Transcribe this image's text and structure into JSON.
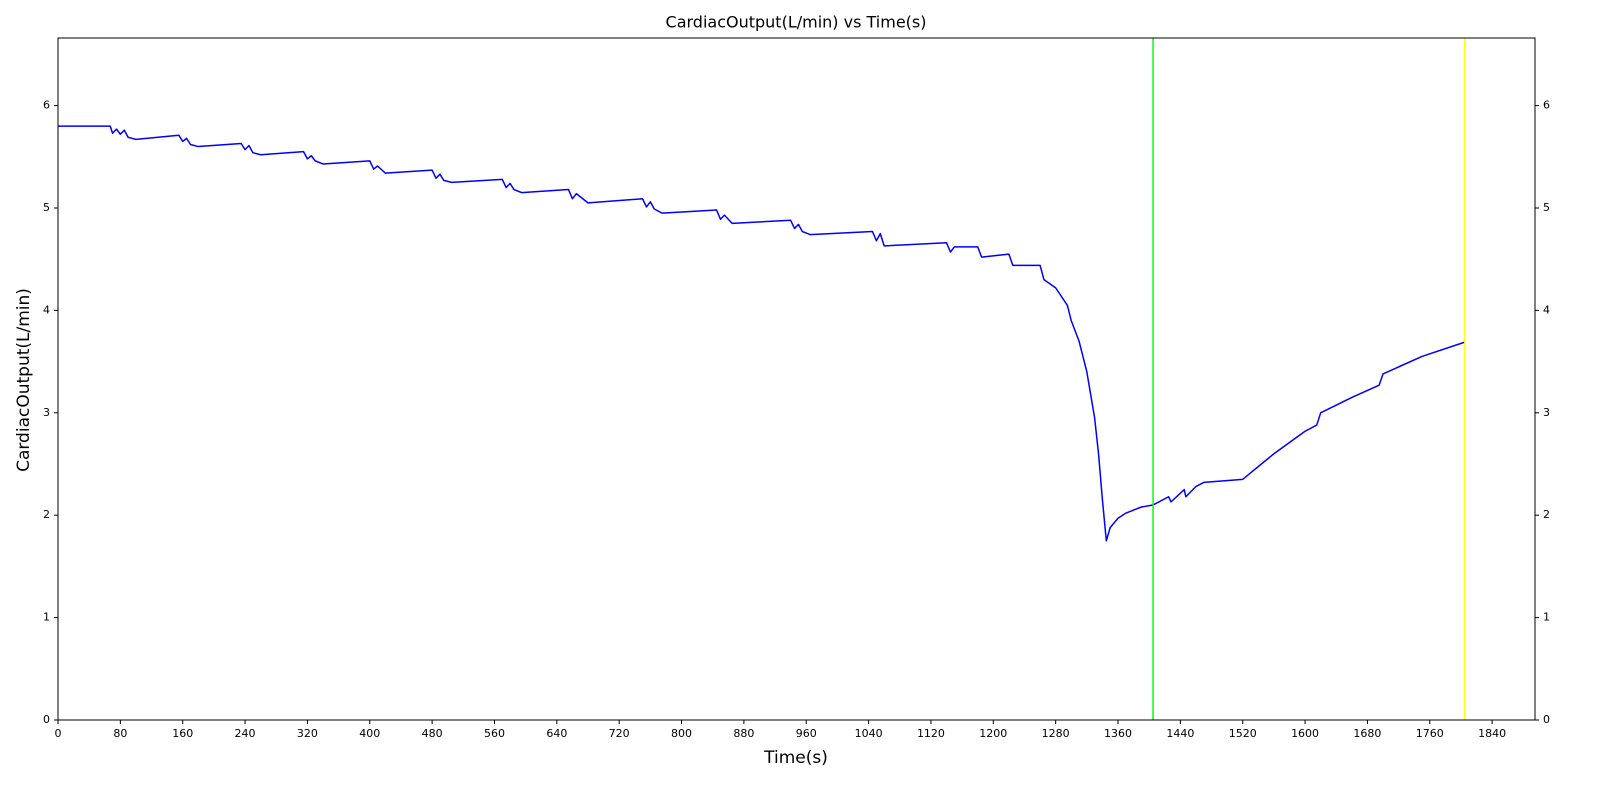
{
  "chart_data": {
    "type": "line",
    "title": "CardiacOutput(L/min) vs Time(s)",
    "xlabel": "Time(s)",
    "ylabel": "CardiacOutput(L/min)",
    "xlim": [
      0,
      1895
    ],
    "ylim": [
      0,
      6.66
    ],
    "xticks": [
      0,
      80,
      160,
      240,
      320,
      400,
      480,
      560,
      640,
      720,
      800,
      880,
      960,
      1040,
      1120,
      1200,
      1280,
      1360,
      1440,
      1520,
      1600,
      1680,
      1760,
      1840
    ],
    "yticks": [
      0,
      1,
      2,
      3,
      4,
      5,
      6
    ],
    "right_ticks": true,
    "grid": false,
    "x": [
      0,
      67,
      70,
      75,
      80,
      85,
      90,
      100,
      155,
      160,
      165,
      170,
      180,
      235,
      240,
      245,
      250,
      260,
      315,
      320,
      325,
      330,
      340,
      400,
      405,
      410,
      420,
      480,
      485,
      490,
      495,
      505,
      570,
      575,
      580,
      585,
      595,
      655,
      660,
      665,
      680,
      750,
      755,
      760,
      765,
      775,
      845,
      850,
      855,
      865,
      940,
      945,
      950,
      955,
      965,
      1045,
      1050,
      1055,
      1060,
      1140,
      1145,
      1150,
      1180,
      1185,
      1220,
      1225,
      1260,
      1265,
      1280,
      1295,
      1300,
      1310,
      1320,
      1330,
      1335,
      1340,
      1345,
      1350,
      1360,
      1370,
      1380,
      1390,
      1405,
      1425,
      1428,
      1445,
      1447,
      1460,
      1470,
      1520,
      1560,
      1600,
      1615,
      1620,
      1660,
      1695,
      1700,
      1750,
      1805
    ],
    "series": [
      {
        "color": "#0000ff",
        "values": [
          5.8,
          5.8,
          5.73,
          5.77,
          5.72,
          5.76,
          5.69,
          5.67,
          5.71,
          5.65,
          5.68,
          5.62,
          5.6,
          5.63,
          5.57,
          5.61,
          5.54,
          5.52,
          5.55,
          5.48,
          5.51,
          5.46,
          5.43,
          5.46,
          5.38,
          5.41,
          5.34,
          5.37,
          5.29,
          5.33,
          5.27,
          5.25,
          5.28,
          5.2,
          5.24,
          5.18,
          5.15,
          5.18,
          5.09,
          5.14,
          5.05,
          5.09,
          5.01,
          5.06,
          4.99,
          4.95,
          4.98,
          4.89,
          4.93,
          4.85,
          4.88,
          4.8,
          4.84,
          4.77,
          4.74,
          4.77,
          4.68,
          4.75,
          4.63,
          4.66,
          4.57,
          4.62,
          4.62,
          4.52,
          4.55,
          4.44,
          4.44,
          4.3,
          4.22,
          4.05,
          3.9,
          3.7,
          3.4,
          2.95,
          2.6,
          2.15,
          1.75,
          1.88,
          1.97,
          2.02,
          2.05,
          2.08,
          2.1,
          2.18,
          2.13,
          2.25,
          2.18,
          2.28,
          2.32,
          2.35,
          2.6,
          2.82,
          2.88,
          3.0,
          3.15,
          3.27,
          3.38,
          3.55,
          3.69
        ]
      }
    ],
    "vlines": [
      {
        "x": 1405,
        "color": "#00ff00"
      },
      {
        "x": 1805,
        "color": "#ffff00"
      }
    ]
  }
}
